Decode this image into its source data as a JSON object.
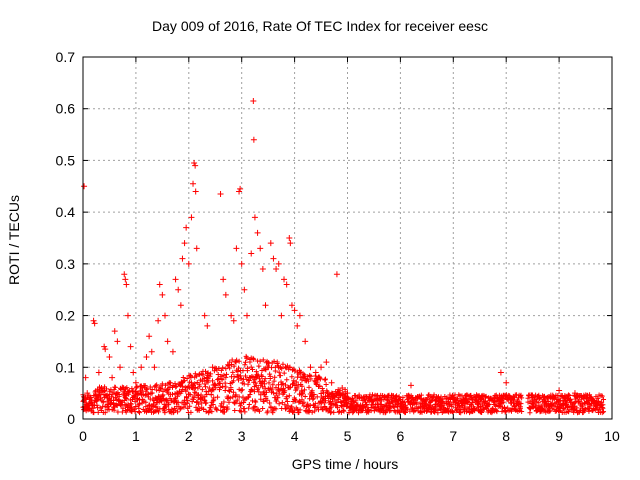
{
  "chart_data": {
    "type": "scatter",
    "title": "Day 009 of 2016, Rate Of TEC Index for receiver eesc",
    "xlabel": "GPS time / hours",
    "ylabel": "ROTI / TECUs",
    "xlim": [
      0,
      10
    ],
    "ylim": [
      0,
      0.7
    ],
    "xticks": [
      "0",
      "1",
      "2",
      "3",
      "4",
      "5",
      "6",
      "7",
      "8",
      "9",
      "10"
    ],
    "yticks": [
      "0",
      "0.1",
      "0.2",
      "0.3",
      "0.4",
      "0.5",
      "0.6",
      "0.7"
    ],
    "grid": true,
    "marker": "+",
    "marker_color": "#ff0000",
    "points": [
      [
        0.02,
        0.45
      ],
      [
        0.05,
        0.08
      ],
      [
        0.08,
        0.05
      ],
      [
        0.12,
        0.03
      ],
      [
        0.2,
        0.19
      ],
      [
        0.22,
        0.185
      ],
      [
        0.3,
        0.09
      ],
      [
        0.35,
        0.06
      ],
      [
        0.4,
        0.14
      ],
      [
        0.42,
        0.135
      ],
      [
        0.5,
        0.12
      ],
      [
        0.55,
        0.08
      ],
      [
        0.6,
        0.17
      ],
      [
        0.65,
        0.15
      ],
      [
        0.7,
        0.1
      ],
      [
        0.78,
        0.28
      ],
      [
        0.8,
        0.27
      ],
      [
        0.82,
        0.26
      ],
      [
        0.85,
        0.2
      ],
      [
        0.9,
        0.14
      ],
      [
        0.95,
        0.09
      ],
      [
        1.0,
        0.07
      ],
      [
        1.1,
        0.1
      ],
      [
        1.2,
        0.12
      ],
      [
        1.25,
        0.16
      ],
      [
        1.3,
        0.13
      ],
      [
        1.35,
        0.1
      ],
      [
        1.42,
        0.19
      ],
      [
        1.45,
        0.26
      ],
      [
        1.5,
        0.24
      ],
      [
        1.55,
        0.2
      ],
      [
        1.6,
        0.15
      ],
      [
        1.7,
        0.13
      ],
      [
        1.75,
        0.27
      ],
      [
        1.8,
        0.25
      ],
      [
        1.85,
        0.22
      ],
      [
        1.88,
        0.31
      ],
      [
        1.92,
        0.34
      ],
      [
        1.95,
        0.37
      ],
      [
        2.0,
        0.3
      ],
      [
        2.05,
        0.39
      ],
      [
        2.08,
        0.455
      ],
      [
        2.1,
        0.495
      ],
      [
        2.12,
        0.49
      ],
      [
        2.13,
        0.44
      ],
      [
        2.15,
        0.33
      ],
      [
        2.3,
        0.2
      ],
      [
        2.35,
        0.18
      ],
      [
        2.45,
        0.1
      ],
      [
        2.6,
        0.435
      ],
      [
        2.65,
        0.27
      ],
      [
        2.7,
        0.24
      ],
      [
        2.8,
        0.2
      ],
      [
        2.85,
        0.19
      ],
      [
        2.9,
        0.33
      ],
      [
        2.95,
        0.44
      ],
      [
        2.97,
        0.445
      ],
      [
        3.0,
        0.3
      ],
      [
        3.05,
        0.25
      ],
      [
        3.1,
        0.2
      ],
      [
        3.18,
        0.32
      ],
      [
        3.22,
        0.615
      ],
      [
        3.23,
        0.54
      ],
      [
        3.25,
        0.39
      ],
      [
        3.3,
        0.36
      ],
      [
        3.35,
        0.33
      ],
      [
        3.4,
        0.29
      ],
      [
        3.45,
        0.22
      ],
      [
        3.55,
        0.34
      ],
      [
        3.6,
        0.31
      ],
      [
        3.65,
        0.29
      ],
      [
        3.7,
        0.3
      ],
      [
        3.75,
        0.2
      ],
      [
        3.8,
        0.27
      ],
      [
        3.85,
        0.26
      ],
      [
        3.9,
        0.35
      ],
      [
        3.92,
        0.34
      ],
      [
        3.95,
        0.22
      ],
      [
        4.0,
        0.21
      ],
      [
        4.05,
        0.18
      ],
      [
        4.1,
        0.2
      ],
      [
        4.2,
        0.15
      ],
      [
        4.3,
        0.1
      ],
      [
        4.4,
        0.09
      ],
      [
        4.5,
        0.1
      ],
      [
        4.6,
        0.11
      ],
      [
        4.7,
        0.07
      ],
      [
        4.8,
        0.28
      ],
      [
        4.9,
        0.06
      ],
      [
        5.0,
        0.05
      ],
      [
        6.2,
        0.065
      ],
      [
        7.9,
        0.09
      ],
      [
        8.0,
        0.07
      ],
      [
        9.0,
        0.055
      ],
      [
        9.3,
        0.05
      ]
    ]
  }
}
